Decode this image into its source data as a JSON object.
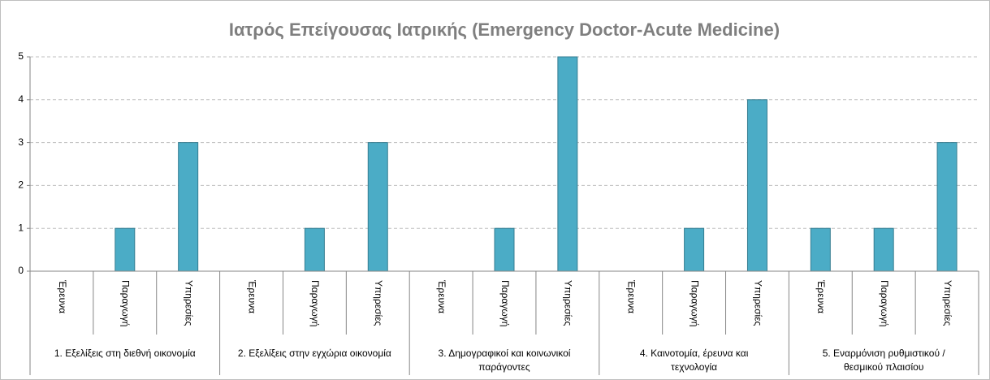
{
  "chart_data": {
    "type": "bar",
    "title": "Ιατρός Επείγουσας Ιατρικής (Emergency Doctor-Acute Medicine)",
    "groups": [
      "1. Εξελίξεις στη διεθνή οικονομία",
      "2. Εξελίξεις στην εγχώρια οικονομία",
      "3. Δημογραφικοί και κοινωνικοί\nπαράγοντες",
      "4. Καινοτομία, έρευνα και\nτεχνολογία",
      "5. Εναρμόνιση ρυθμιστικού /\nθεσμικού πλαισίου"
    ],
    "categories": [
      "Έρευνα",
      "Παραγωγή",
      "Υπηρεσίες",
      "Έρευνα",
      "Παραγωγή",
      "Υπηρεσίες",
      "Έρευνα",
      "Παραγωγή",
      "Υπηρεσίες",
      "Έρευνα",
      "Παραγωγή",
      "Υπηρεσίες",
      "Έρευνα",
      "Παραγωγή",
      "Υπηρεσίες"
    ],
    "values": [
      0,
      1,
      3,
      0,
      1,
      3,
      0,
      1,
      5,
      0,
      1,
      4,
      1,
      1,
      3
    ],
    "color": "#4bacc6",
    "ylim": [
      0,
      5
    ],
    "yticks": [
      0,
      1,
      2,
      3,
      4,
      5
    ],
    "grid": true
  }
}
